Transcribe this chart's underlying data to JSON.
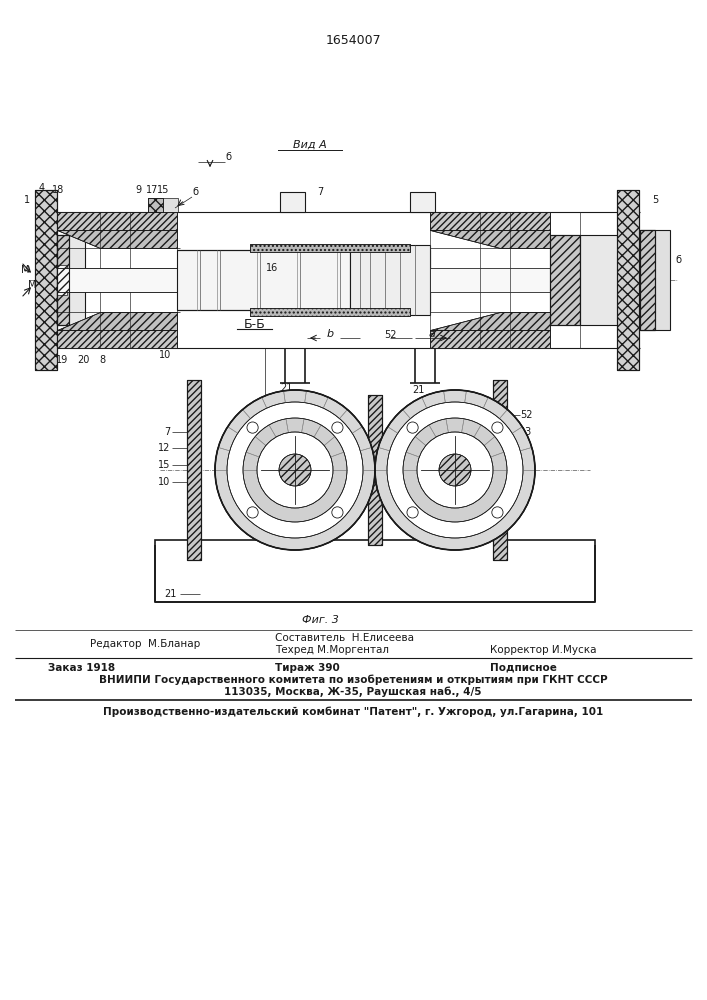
{
  "patent_number": "1654007",
  "bg_color": "#ffffff",
  "line_color": "#1a1a1a",
  "fig_width": 7.07,
  "fig_height": 10.0,
  "footer": {
    "editor": "Редактор  М.Бланар",
    "composer": "Составитель  Н.Елисеева",
    "techred": "Техред М.Моргентал",
    "corrector": "Корректор И.Муска",
    "order": "Заказ 1918",
    "tirazh": "Тираж 390",
    "podpisnoe": "Подписное",
    "vniiipi_line1": "ВНИИПИ Государственного комитета по изобретениям и открытиям при ГКНТ СССР",
    "vniiipi_line2": "113035, Москва, Ж-35, Раушская наб., 4/5",
    "production": "Производственно-издательский комбинат \"Патент\", г. Ужгород, ул.Гагарина, 101"
  }
}
